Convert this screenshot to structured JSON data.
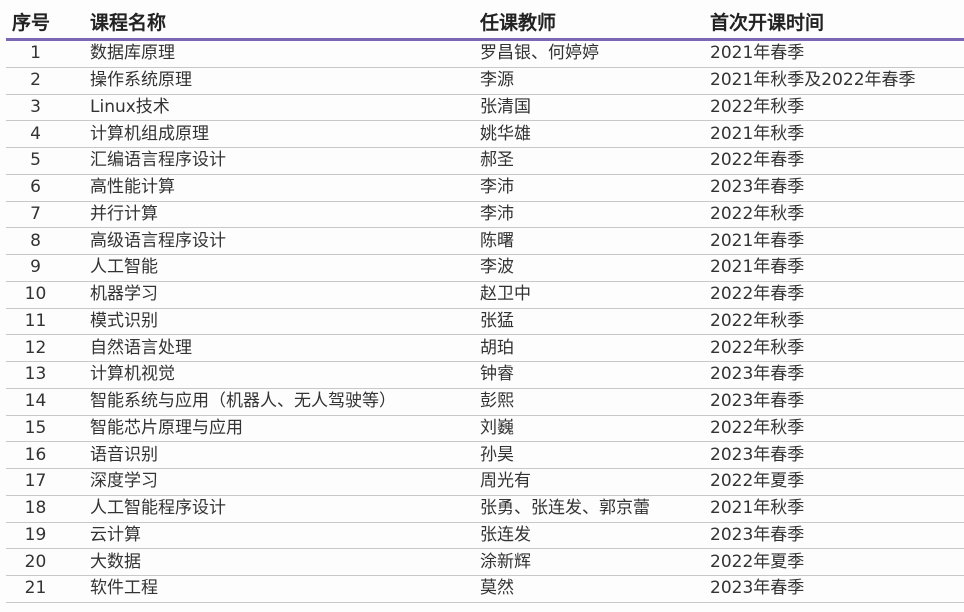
{
  "table": {
    "headers": [
      "序号",
      "课程名称",
      "任课教师",
      "首次开课时间"
    ],
    "rows": [
      [
        "1",
        "数据库原理",
        "罗昌银、何婷婷",
        "2021年春季"
      ],
      [
        "2",
        "操作系统原理",
        "李源",
        "2021年秋季及2022年春季"
      ],
      [
        "3",
        "Linux技术",
        "张清国",
        "2022年秋季"
      ],
      [
        "4",
        "计算机组成原理",
        "姚华雄",
        "2021年秋季"
      ],
      [
        "5",
        "汇编语言程序设计",
        "郝圣",
        "2022年春季"
      ],
      [
        "6",
        "高性能计算",
        "李沛",
        "2023年春季"
      ],
      [
        "7",
        "并行计算",
        "李沛",
        "2022年秋季"
      ],
      [
        "8",
        "高级语言程序设计",
        "陈曙",
        "2021年春季"
      ],
      [
        "9",
        "人工智能",
        "李波",
        "2021年春季"
      ],
      [
        "10",
        "机器学习",
        "赵卫中",
        "2022年春季"
      ],
      [
        "11",
        "模式识别",
        "张猛",
        "2022年秋季"
      ],
      [
        "12",
        "自然语言处理",
        "胡珀",
        "2022年秋季"
      ],
      [
        "13",
        "计算机视觉",
        "钟睿",
        "2023年春季"
      ],
      [
        "14",
        "智能系统与应用（机器人、无人驾驶等）",
        "彭熙",
        "2023年春季"
      ],
      [
        "15",
        "智能芯片原理与应用",
        "刘巍",
        "2022年秋季"
      ],
      [
        "16",
        "语音识别",
        "孙昊",
        "2023年春季"
      ],
      [
        "17",
        "深度学习",
        "周光有",
        "2022年夏季"
      ],
      [
        "18",
        "人工智能程序设计",
        "张勇、张连发、郭京蕾",
        "2021年秋季"
      ],
      [
        "19",
        "云计算",
        "张连发",
        "2023年春季"
      ],
      [
        "20",
        "大数据",
        "涂新辉",
        "2022年夏季"
      ],
      [
        "21",
        "软件工程",
        "莫然",
        "2023年春季"
      ]
    ]
  },
  "colors": {
    "header_rule": "#7a68b4",
    "row_rule": "#c8c8c8"
  }
}
